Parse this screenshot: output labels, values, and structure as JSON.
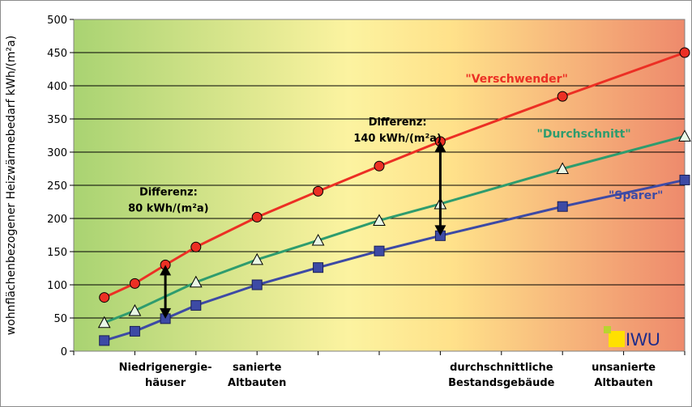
{
  "chart_data": {
    "type": "line",
    "ylabel": "wohnflächenbezogener Heizwärmebedarf kWh/(m²a)",
    "ylim": [
      0,
      500
    ],
    "yticks": [
      0,
      50,
      100,
      150,
      200,
      250,
      300,
      350,
      400,
      450,
      500
    ],
    "x_categories": [
      {
        "label_lines": [
          "Niedrigenergie-",
          "häuser"
        ],
        "x": 1.5
      },
      {
        "label_lines": [
          "sanierte",
          "Altbauten"
        ],
        "x": 3
      },
      {
        "label_lines": [
          "durchschnittliche",
          "Bestandsgebäude"
        ],
        "x": 7
      },
      {
        "label_lines": [
          "unsanierte",
          "Altbauten"
        ],
        "x": 9
      }
    ],
    "xlim": [
      0,
      10
    ],
    "series": [
      {
        "name": "\"Verschwender\"",
        "color": "#ec2f24",
        "marker": "circle",
        "x": [
          0.5,
          1,
          1.5,
          2,
          3,
          4,
          5,
          6,
          8,
          10
        ],
        "y": [
          81,
          102,
          130,
          157,
          202,
          241,
          279,
          316,
          384,
          450
        ]
      },
      {
        "name": "\"Durchschnitt\"",
        "color": "#2e9c6e",
        "marker": "triangle",
        "x": [
          0.5,
          1,
          2,
          3,
          4,
          5,
          6,
          8,
          10
        ],
        "y": [
          43,
          61,
          104,
          138,
          167,
          197,
          222,
          275,
          324
        ]
      },
      {
        "name": "\"Sparer\"",
        "color": "#3d4aa5",
        "marker": "square",
        "x": [
          0.5,
          1,
          1.5,
          2,
          3,
          4,
          5,
          6,
          8,
          10
        ],
        "y": [
          16,
          30,
          49,
          69,
          100,
          126,
          151,
          174,
          218,
          258
        ]
      }
    ],
    "annotations": [
      {
        "lines": [
          "Differenz:",
          "80 kWh/(m²a)"
        ],
        "arrow_x": 1.5,
        "arrow_y": [
          49,
          130
        ]
      },
      {
        "lines": [
          "Differenz:",
          "140 kWh/(m²a)"
        ],
        "arrow_x": 6,
        "arrow_y": [
          174,
          316
        ]
      }
    ],
    "background_gradient": [
      "#a9d372",
      "#ffef9a",
      "#ef8d6f"
    ]
  },
  "logo": {
    "text": "IWU"
  }
}
